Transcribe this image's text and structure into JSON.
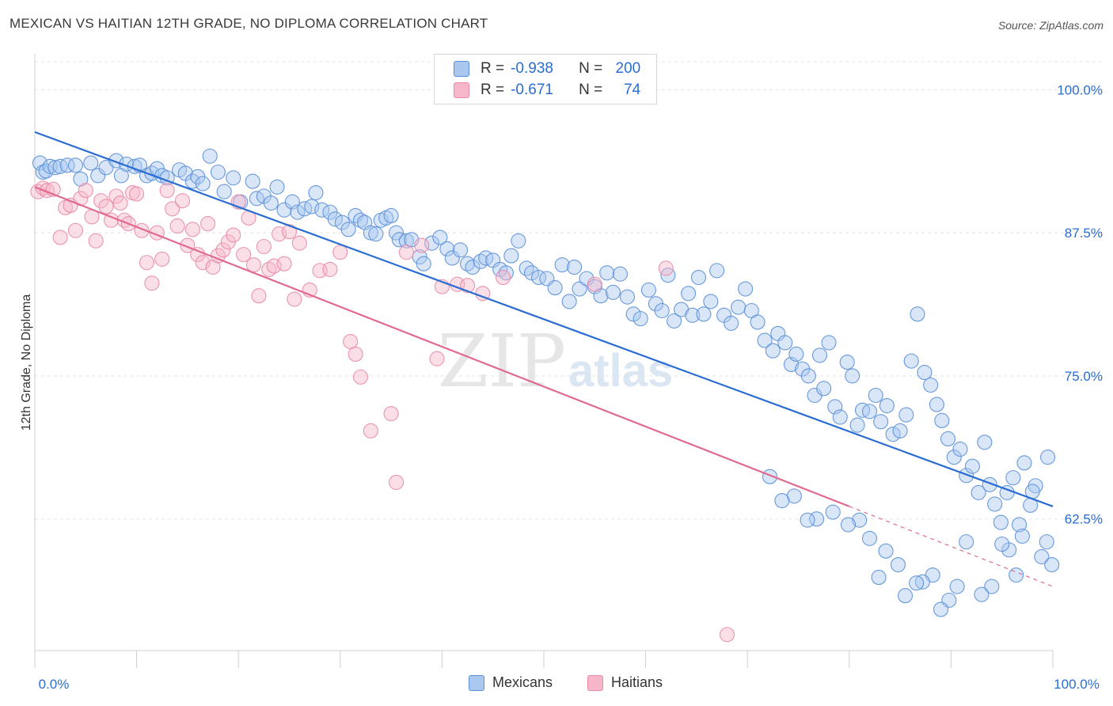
{
  "header": {
    "title": "MEXICAN VS HAITIAN 12TH GRADE, NO DIPLOMA CORRELATION CHART",
    "source": "Source: ZipAtlas.com"
  },
  "watermark": "ZIPatlas",
  "legend": {
    "r_label": "R =",
    "n_label": "N =",
    "rows": [
      {
        "r": "-0.938",
        "n": "200",
        "color": "#a9c7ef"
      },
      {
        "r": "-0.671",
        "n": "74",
        "color": "#f6b7ca"
      }
    ]
  },
  "bottom_legend": [
    {
      "label": "Mexicans",
      "color": "#a9c7ef"
    },
    {
      "label": "Haitians",
      "color": "#f6b7ca"
    }
  ],
  "chart_data": {
    "type": "scatter",
    "xlabel": "",
    "ylabel": "12th Grade, No Diploma",
    "xlim": [
      0,
      100
    ],
    "ylim": [
      51,
      103
    ],
    "x_tick_labels": [
      "0.0%",
      "100.0%"
    ],
    "y_ticks": [
      {
        "value": 100,
        "label": "100.0%"
      },
      {
        "value": 87.5,
        "label": "87.5%"
      },
      {
        "value": 75,
        "label": "75.0%"
      },
      {
        "value": 62.5,
        "label": "62.5%"
      }
    ],
    "grid": true,
    "series": [
      {
        "name": "Mexicans",
        "color": "#5a8fd8",
        "fill": "#a9c7ef",
        "trend": {
          "x": [
            0,
            100
          ],
          "y": [
            96.3,
            63.6
          ],
          "color": "#2a6dd2"
        },
        "points": [
          [
            0.5,
            93.6
          ],
          [
            0.8,
            92.8
          ],
          [
            1.1,
            92.9
          ],
          [
            1.5,
            93.3
          ],
          [
            2.0,
            93.2
          ],
          [
            2.5,
            93.3
          ],
          [
            3.2,
            93.4
          ],
          [
            4.0,
            93.4
          ],
          [
            4.5,
            92.2
          ],
          [
            5.5,
            93.6
          ],
          [
            6.2,
            92.5
          ],
          [
            7.0,
            93.2
          ],
          [
            8.0,
            93.8
          ],
          [
            8.5,
            92.5
          ],
          [
            9.0,
            93.5
          ],
          [
            9.8,
            93.3
          ],
          [
            10.3,
            93.4
          ],
          [
            11.0,
            92.5
          ],
          [
            11.5,
            92.7
          ],
          [
            12.0,
            93.1
          ],
          [
            12.5,
            92.5
          ],
          [
            13.0,
            92.3
          ],
          [
            14.2,
            93.0
          ],
          [
            14.8,
            92.7
          ],
          [
            15.5,
            92.0
          ],
          [
            16.0,
            92.4
          ],
          [
            16.5,
            91.8
          ],
          [
            17.2,
            94.2
          ],
          [
            18.0,
            92.8
          ],
          [
            18.6,
            91.1
          ],
          [
            19.5,
            92.3
          ],
          [
            20.2,
            90.2
          ],
          [
            21.4,
            92.0
          ],
          [
            21.8,
            90.5
          ],
          [
            22.5,
            90.7
          ],
          [
            23.2,
            90.1
          ],
          [
            23.8,
            91.5
          ],
          [
            24.5,
            89.5
          ],
          [
            25.3,
            90.2
          ],
          [
            25.8,
            89.3
          ],
          [
            26.5,
            89.6
          ],
          [
            27.2,
            89.8
          ],
          [
            27.6,
            91.0
          ],
          [
            28.2,
            89.5
          ],
          [
            29.0,
            89.3
          ],
          [
            29.5,
            88.7
          ],
          [
            30.2,
            88.4
          ],
          [
            30.8,
            87.8
          ],
          [
            31.5,
            89.0
          ],
          [
            32.0,
            88.6
          ],
          [
            32.4,
            88.4
          ],
          [
            33.0,
            87.5
          ],
          [
            33.5,
            87.4
          ],
          [
            34.0,
            88.6
          ],
          [
            34.5,
            88.8
          ],
          [
            35.0,
            89.0
          ],
          [
            35.5,
            87.5
          ],
          [
            35.8,
            86.9
          ],
          [
            36.5,
            86.8
          ],
          [
            37.0,
            86.9
          ],
          [
            37.8,
            85.4
          ],
          [
            38.2,
            84.8
          ],
          [
            39.0,
            86.6
          ],
          [
            39.8,
            87.1
          ],
          [
            40.5,
            86.1
          ],
          [
            41.0,
            85.3
          ],
          [
            41.8,
            86.0
          ],
          [
            42.5,
            84.8
          ],
          [
            43.0,
            84.5
          ],
          [
            43.8,
            85.0
          ],
          [
            44.3,
            85.3
          ],
          [
            45.0,
            85.1
          ],
          [
            45.7,
            84.3
          ],
          [
            46.3,
            84.0
          ],
          [
            46.8,
            85.5
          ],
          [
            47.5,
            86.8
          ],
          [
            48.3,
            84.4
          ],
          [
            48.8,
            84.0
          ],
          [
            49.5,
            83.6
          ],
          [
            50.3,
            83.5
          ],
          [
            51.1,
            82.7
          ],
          [
            51.8,
            84.7
          ],
          [
            52.5,
            81.5
          ],
          [
            53.0,
            84.5
          ],
          [
            53.5,
            82.6
          ],
          [
            54.2,
            83.5
          ],
          [
            55.0,
            82.8
          ],
          [
            55.6,
            82.0
          ],
          [
            56.2,
            84.0
          ],
          [
            56.8,
            82.3
          ],
          [
            57.5,
            83.9
          ],
          [
            58.2,
            81.9
          ],
          [
            58.8,
            80.4
          ],
          [
            59.5,
            80.0
          ],
          [
            60.3,
            82.5
          ],
          [
            61.0,
            81.3
          ],
          [
            61.6,
            80.7
          ],
          [
            62.2,
            83.8
          ],
          [
            62.8,
            79.8
          ],
          [
            63.5,
            80.8
          ],
          [
            64.2,
            82.2
          ],
          [
            64.6,
            80.3
          ],
          [
            65.2,
            83.6
          ],
          [
            65.7,
            80.4
          ],
          [
            66.4,
            81.5
          ],
          [
            67.0,
            84.2
          ],
          [
            67.7,
            80.3
          ],
          [
            68.4,
            79.6
          ],
          [
            69.1,
            81.0
          ],
          [
            69.8,
            82.6
          ],
          [
            70.4,
            80.7
          ],
          [
            71.0,
            79.7
          ],
          [
            71.7,
            78.1
          ],
          [
            72.5,
            77.2
          ],
          [
            73.0,
            78.7
          ],
          [
            73.7,
            77.9
          ],
          [
            74.3,
            76.0
          ],
          [
            74.8,
            76.9
          ],
          [
            75.4,
            75.6
          ],
          [
            76.0,
            75.0
          ],
          [
            76.6,
            73.3
          ],
          [
            77.1,
            76.8
          ],
          [
            77.5,
            73.9
          ],
          [
            78.0,
            77.9
          ],
          [
            78.6,
            72.3
          ],
          [
            79.1,
            71.4
          ],
          [
            79.8,
            76.2
          ],
          [
            80.3,
            75.0
          ],
          [
            80.8,
            70.7
          ],
          [
            81.3,
            72.0
          ],
          [
            82.0,
            71.9
          ],
          [
            82.6,
            73.3
          ],
          [
            83.1,
            71.0
          ],
          [
            83.7,
            72.4
          ],
          [
            84.3,
            69.9
          ],
          [
            85.0,
            70.2
          ],
          [
            85.6,
            71.6
          ],
          [
            86.1,
            76.3
          ],
          [
            86.7,
            80.4
          ],
          [
            87.4,
            75.3
          ],
          [
            88.0,
            74.2
          ],
          [
            88.6,
            72.5
          ],
          [
            89.1,
            71.1
          ],
          [
            89.7,
            69.5
          ],
          [
            90.3,
            67.9
          ],
          [
            90.9,
            68.6
          ],
          [
            91.5,
            66.3
          ],
          [
            92.1,
            67.1
          ],
          [
            92.7,
            64.8
          ],
          [
            93.3,
            69.2
          ],
          [
            93.8,
            65.5
          ],
          [
            94.3,
            63.8
          ],
          [
            94.9,
            62.2
          ],
          [
            95.5,
            64.8
          ],
          [
            96.1,
            66.1
          ],
          [
            96.7,
            62.0
          ],
          [
            97.2,
            67.4
          ],
          [
            97.8,
            63.7
          ],
          [
            98.3,
            65.4
          ],
          [
            98.9,
            59.2
          ],
          [
            99.4,
            60.5
          ],
          [
            99.9,
            58.5
          ],
          [
            99.5,
            67.9
          ],
          [
            98.0,
            64.9
          ],
          [
            97.0,
            61.0
          ],
          [
            96.4,
            57.6
          ],
          [
            95.7,
            59.8
          ],
          [
            95.0,
            60.3
          ],
          [
            94.0,
            56.6
          ],
          [
            93.0,
            55.9
          ],
          [
            91.5,
            60.5
          ],
          [
            90.6,
            56.6
          ],
          [
            89.8,
            55.4
          ],
          [
            89.0,
            54.6
          ],
          [
            88.2,
            57.6
          ],
          [
            87.2,
            57.0
          ],
          [
            86.6,
            56.9
          ],
          [
            85.5,
            55.8
          ],
          [
            84.8,
            58.5
          ],
          [
            83.6,
            59.7
          ],
          [
            82.9,
            57.4
          ],
          [
            82.0,
            60.8
          ],
          [
            81.0,
            62.4
          ],
          [
            79.9,
            62.0
          ],
          [
            78.4,
            63.1
          ],
          [
            76.8,
            62.5
          ],
          [
            75.9,
            62.4
          ],
          [
            74.6,
            64.5
          ],
          [
            73.4,
            64.1
          ],
          [
            72.2,
            66.2
          ]
        ]
      },
      {
        "name": "Haitians",
        "color": "#e88aa8",
        "fill": "#f6b7ca",
        "trend": {
          "x": [
            0,
            80
          ],
          "y": [
            91.5,
            63.6
          ],
          "color": "#e06a92",
          "dashed_to": [
            100,
            56.6
          ]
        },
        "points": [
          [
            0.3,
            91.1
          ],
          [
            0.8,
            91.4
          ],
          [
            1.2,
            91.2
          ],
          [
            1.8,
            91.3
          ],
          [
            2.5,
            87.1
          ],
          [
            3.0,
            89.7
          ],
          [
            3.5,
            89.9
          ],
          [
            4.0,
            87.7
          ],
          [
            4.5,
            90.5
          ],
          [
            5.0,
            91.2
          ],
          [
            5.6,
            88.9
          ],
          [
            6.0,
            86.8
          ],
          [
            6.5,
            90.3
          ],
          [
            7.0,
            89.8
          ],
          [
            7.5,
            88.6
          ],
          [
            8.0,
            90.7
          ],
          [
            8.4,
            90.1
          ],
          [
            8.8,
            88.6
          ],
          [
            9.2,
            88.3
          ],
          [
            9.6,
            91.0
          ],
          [
            10.0,
            90.9
          ],
          [
            10.5,
            87.7
          ],
          [
            11.0,
            84.9
          ],
          [
            11.5,
            83.1
          ],
          [
            12.0,
            87.5
          ],
          [
            12.5,
            85.2
          ],
          [
            13.0,
            91.2
          ],
          [
            13.5,
            89.6
          ],
          [
            14.0,
            88.1
          ],
          [
            14.5,
            90.3
          ],
          [
            15.0,
            86.4
          ],
          [
            15.5,
            87.8
          ],
          [
            16.0,
            85.6
          ],
          [
            16.5,
            84.9
          ],
          [
            17.0,
            88.3
          ],
          [
            17.5,
            84.5
          ],
          [
            18.0,
            85.5
          ],
          [
            18.5,
            86.0
          ],
          [
            19.0,
            86.7
          ],
          [
            19.5,
            87.3
          ],
          [
            20.0,
            90.2
          ],
          [
            20.5,
            85.6
          ],
          [
            21.0,
            88.8
          ],
          [
            21.5,
            84.7
          ],
          [
            22.0,
            82.0
          ],
          [
            22.5,
            86.3
          ],
          [
            23.0,
            84.3
          ],
          [
            23.5,
            84.6
          ],
          [
            24.0,
            87.4
          ],
          [
            24.5,
            84.8
          ],
          [
            25.0,
            87.6
          ],
          [
            25.5,
            81.7
          ],
          [
            26.0,
            86.6
          ],
          [
            27.0,
            82.5
          ],
          [
            28.0,
            84.2
          ],
          [
            29.0,
            84.3
          ],
          [
            30.0,
            85.8
          ],
          [
            31.0,
            78.0
          ],
          [
            31.5,
            76.9
          ],
          [
            32.0,
            74.9
          ],
          [
            33.0,
            70.2
          ],
          [
            35.0,
            71.7
          ],
          [
            35.5,
            65.7
          ],
          [
            36.5,
            85.8
          ],
          [
            38.0,
            86.4
          ],
          [
            39.5,
            76.5
          ],
          [
            40.0,
            82.8
          ],
          [
            41.5,
            83.0
          ],
          [
            42.5,
            82.9
          ],
          [
            44.0,
            82.2
          ],
          [
            46.0,
            83.6
          ],
          [
            55.0,
            83.0
          ],
          [
            62.0,
            84.4
          ],
          [
            68.0,
            52.4
          ]
        ]
      }
    ]
  }
}
